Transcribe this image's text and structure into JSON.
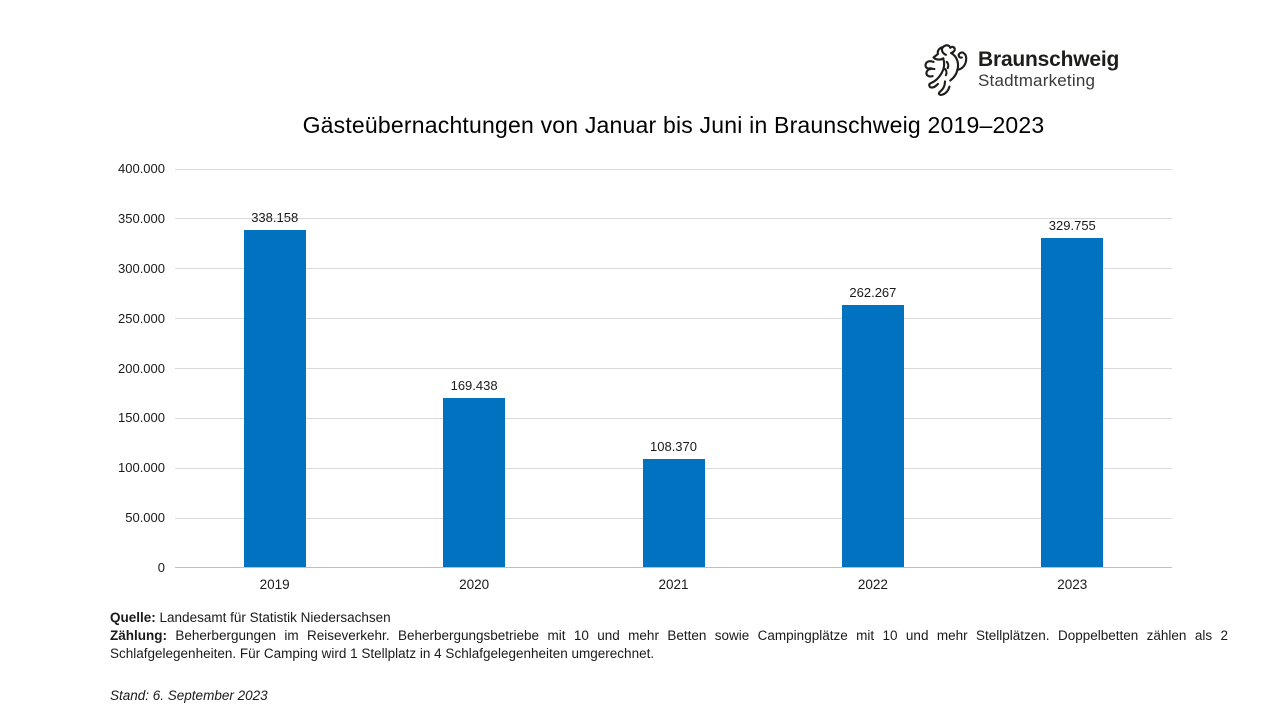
{
  "logo": {
    "name": "Braunschweig",
    "subtitle": "Stadtmarketing"
  },
  "chart_data": {
    "type": "bar",
    "title": "Gästeübernachtungen von Januar bis Juni in Braunschweig 2019–2023",
    "categories": [
      "2019",
      "2020",
      "2021",
      "2022",
      "2023"
    ],
    "values": [
      338158,
      169438,
      108370,
      262267,
      329755
    ],
    "value_labels": [
      "338.158",
      "169.438",
      "108.370",
      "262.267",
      "329.755"
    ],
    "xlabel": "",
    "ylabel": "",
    "ylim": [
      0,
      400000
    ],
    "ytick_step": 50000,
    "ytick_labels": [
      "0",
      "50.000",
      "100.000",
      "150.000",
      "200.000",
      "250.000",
      "300.000",
      "350.000",
      "400.000"
    ],
    "grid": true,
    "legend": "none",
    "bar_color": "#0072BF",
    "gridline_color": "#d9d9d9"
  },
  "footer": {
    "source_label": "Quelle:",
    "source_text": "Landesamt für Statistik Niedersachsen",
    "counting_label": "Zählung:",
    "counting_text": "Beherbergungen im Reiseverkehr. Beherbergungsbetriebe mit 10 und mehr Betten sowie Campingplätze mit 10 und mehr Stellplätzen. Doppelbetten zählen als 2 Schlafgelegenheiten. Für Camping wird 1 Stellplatz in 4 Schlafgelegenheiten umgerechnet.",
    "stand_text": "Stand: 6. September 2023"
  }
}
